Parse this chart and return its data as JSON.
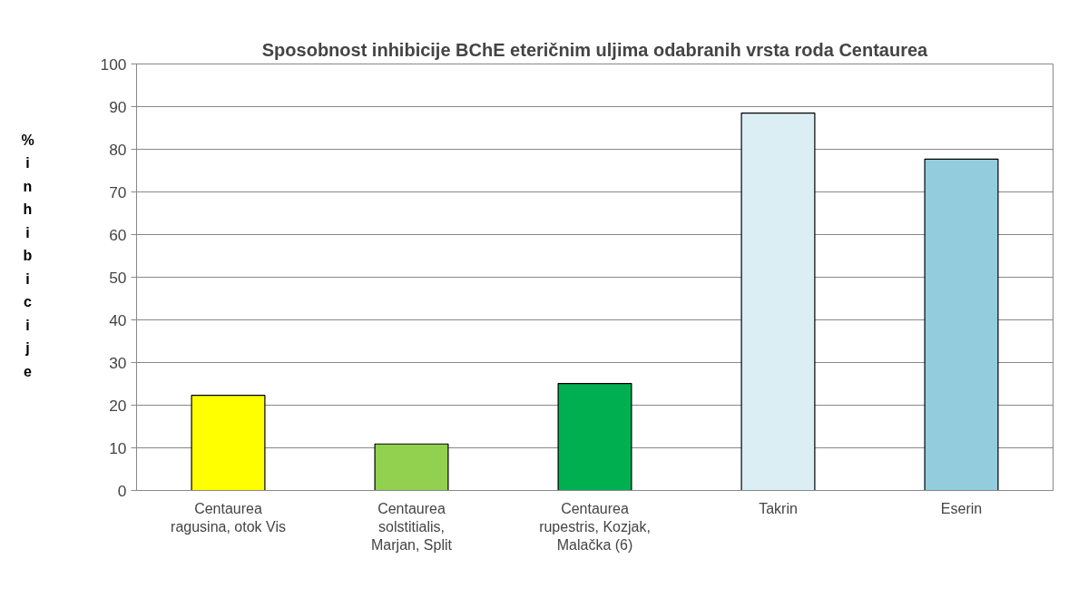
{
  "chart_data": {
    "type": "bar",
    "title": "Sposobnost inhibicije BChE eteričnim uljima odabranih vrsta roda Centaurea",
    "ylabel": "% inhibicije",
    "categories": [
      "Centaurea ragusina, otok Vis",
      "Centaurea solstitialis, Marjan, Split",
      "Centaurea rupestris, Kozjak, Malačka (6)",
      "Takrin",
      "Eserin"
    ],
    "values": [
      22.3,
      10.9,
      25.1,
      88.5,
      77.7
    ],
    "colors": [
      "#ffff00",
      "#92d050",
      "#00b050",
      "#dbeef4",
      "#93cddd"
    ],
    "ylim": [
      0,
      100
    ],
    "yticks": [
      0,
      10,
      20,
      30,
      40,
      50,
      60,
      70,
      80,
      90,
      100
    ],
    "grid": "y"
  }
}
